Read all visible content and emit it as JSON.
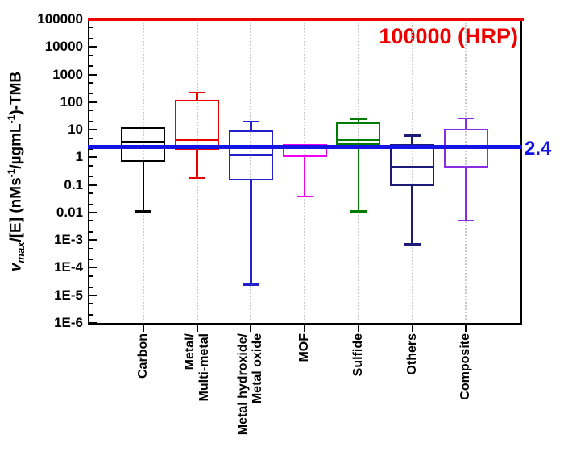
{
  "chart_data": {
    "type": "boxplot",
    "title": "",
    "yscale": "log",
    "ylim": [
      1e-06,
      100000
    ],
    "ylabel": "vmax/[E] (nMs-1/ugmL-1)-TMB",
    "yaxis_title": {
      "var": "v",
      "var_sub": "max",
      "mid": "/[E] (nMs",
      "sup1": "-1",
      "mid2": "/µgmL",
      "sup2": "-1",
      "end": ")-TMB"
    },
    "grid": "vertical-dotted",
    "legend": "none",
    "yticks": [
      {
        "value": 100000,
        "label": "100000"
      },
      {
        "value": 10000,
        "label": "10000"
      },
      {
        "value": 1000,
        "label": "1000"
      },
      {
        "value": 100,
        "label": "100"
      },
      {
        "value": 10,
        "label": "10"
      },
      {
        "value": 1,
        "label": "1"
      },
      {
        "value": 0.1,
        "label": "0.1"
      },
      {
        "value": 0.01,
        "label": "0.01"
      },
      {
        "value": 0.001,
        "label": "1E-3"
      },
      {
        "value": 0.0001,
        "label": "1E-4"
      },
      {
        "value": 1e-05,
        "label": "1E-5"
      },
      {
        "value": 1e-06,
        "label": "1E-6"
      }
    ],
    "categories": [
      "Carbon",
      "Metal/Multi-metal",
      "Metal hydroxide/Metal oxide",
      "MOF",
      "Sulfide",
      "Others",
      "Composite"
    ],
    "series": [
      {
        "name": "Carbon",
        "name_lines": [
          "Carbon"
        ],
        "color": "#000000",
        "whisker_high": null,
        "q3": 12,
        "median": 3.5,
        "q1": 0.7,
        "whisker_low": 0.011
      },
      {
        "name": "Metal/Multi-metal",
        "name_lines": [
          "Metal/",
          "Multi-metal"
        ],
        "color": "#e60000",
        "whisker_high": 220,
        "q3": 120,
        "median": 4.2,
        "q1": 1.9,
        "whisker_low": 0.18
      },
      {
        "name": "Metal hydroxide/Metal oxide",
        "name_lines": [
          "Metal hydroxide/",
          "Metal oxide"
        ],
        "color": "#2121cd",
        "whisker_high": 20,
        "q3": 9.5,
        "median": 1.2,
        "q1": 0.15,
        "whisker_low": 2.4e-05
      },
      {
        "name": "MOF",
        "name_lines": [
          "MOF"
        ],
        "color": "#ee00ee",
        "whisker_high": null,
        "q3": 3.1,
        "median": 2.4,
        "q1": 1.0,
        "whisker_low": 0.038
      },
      {
        "name": "Sulfide",
        "name_lines": [
          "Sulfide"
        ],
        "color": "#007d00",
        "whisker_high": 24,
        "q3": 18,
        "median": 4.4,
        "q1": 2.8,
        "whisker_low": 0.011
      },
      {
        "name": "Others",
        "name_lines": [
          "Others"
        ],
        "color": "#1c1c78",
        "whisker_high": 6,
        "q3": 3.1,
        "median": 0.44,
        "q1": 0.09,
        "whisker_low": 0.0007
      },
      {
        "name": "Composite",
        "name_lines": [
          "Composite"
        ],
        "color": "#8a2be2",
        "whisker_high": 26,
        "q3": 11,
        "median": 2.4,
        "q1": 0.44,
        "whisker_low": 0.005
      }
    ],
    "reference_lines": [
      {
        "id": "hrp",
        "value": 100000,
        "color": "#ee0000",
        "label": "100000 (HRP)"
      },
      {
        "id": "tmb",
        "value": 2.4,
        "color": "#1414e6",
        "label": "2.4"
      }
    ],
    "annotations": {
      "hrp_label": "100000 (HRP)",
      "hrp_color": "#ee0000",
      "ref_value_label": "2.4",
      "ref_value_color": "#1414e6"
    }
  }
}
